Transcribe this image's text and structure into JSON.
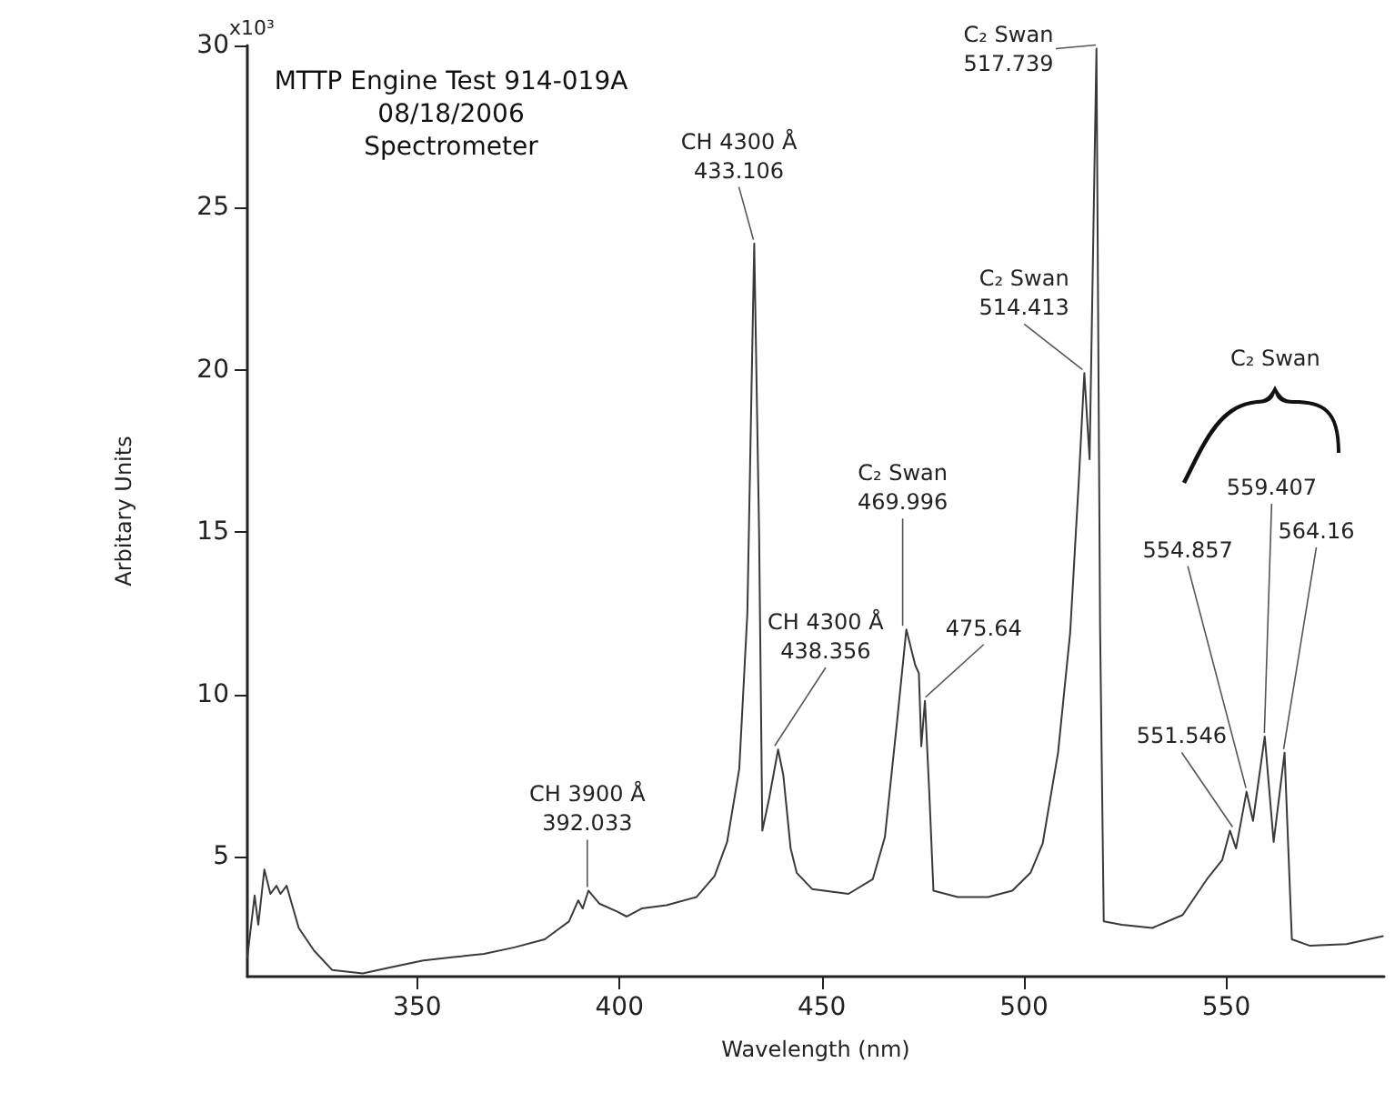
{
  "chart_data": {
    "type": "line",
    "title": "MTTP Engine Test 914-019A",
    "subtitle": "08/18/2006\nSpectrometer",
    "xlabel": "Wavelength (nm)",
    "ylabel": "Arbitary Units",
    "x": [
      308,
      309.8,
      310.7,
      312.2,
      313.7,
      315.2,
      316.2,
      317.7,
      320.7,
      324.5,
      329,
      336.5,
      344,
      351.5,
      359,
      366.5,
      374,
      381.5,
      387.5,
      389.8,
      390.9,
      392.3,
      395,
      399.5,
      401.8,
      405.5,
      411.6,
      419,
      423.5,
      426.6,
      429.6,
      431.6,
      433.3,
      434.5,
      435.3,
      437,
      439.2,
      440.5,
      442.3,
      443.8,
      447.6,
      456.6,
      462.6,
      465.6,
      468.6,
      470.9,
      473.1,
      474,
      474.6,
      475.5,
      476.6,
      477.6,
      483.6,
      491.1,
      497.1,
      501.6,
      504.6,
      508.4,
      511.4,
      513.5,
      514.9,
      516.2,
      517.9,
      518.8,
      519.7,
      524.2,
      531.7,
      539.2,
      545.2,
      549,
      550.9,
      552.4,
      555,
      556.6,
      559.5,
      561.7,
      564.4,
      566.2,
      570.7,
      579.7,
      588.7
    ],
    "values": [
      1.9,
      3.8,
      2.9,
      4.6,
      3.85,
      4.1,
      3.85,
      4.1,
      2.8,
      2.1,
      1.5,
      1.4,
      1.6,
      1.8,
      1.9,
      2.0,
      2.2,
      2.45,
      3.0,
      3.65,
      3.4,
      3.95,
      3.55,
      3.3,
      3.15,
      3.4,
      3.5,
      3.75,
      4.4,
      5.45,
      7.7,
      12.5,
      23.9,
      15.0,
      5.8,
      6.8,
      8.3,
      7.5,
      5.25,
      4.5,
      4.0,
      3.85,
      4.3,
      5.6,
      9.15,
      12.0,
      10.9,
      10.65,
      8.4,
      9.8,
      6.9,
      3.95,
      3.75,
      3.75,
      3.95,
      4.5,
      5.4,
      8.2,
      11.9,
      16.5,
      19.9,
      17.25,
      29.9,
      12.0,
      3.0,
      2.9,
      2.8,
      3.2,
      4.3,
      4.9,
      5.8,
      5.25,
      7.0,
      6.1,
      8.7,
      5.45,
      8.2,
      2.45,
      2.25,
      2.3,
      2.55
    ],
    "color": "#3a3a3a",
    "xlim": [
      308,
      589
    ],
    "xticks": [
      350,
      400,
      450,
      500,
      550
    ],
    "ylim": [
      1.3,
      30
    ],
    "yticks": [
      5,
      10,
      15,
      20,
      25,
      30
    ],
    "grid": false,
    "marker": "none",
    "line_style": "solid",
    "annotations": [
      {
        "text": "CH 3900 Å\n392.033",
        "x": 392.033,
        "y": 3.95
      },
      {
        "text": "CH 4300 Å\n433.106",
        "x": 433.106,
        "y": 23.9
      },
      {
        "text": "CH 4300 Å\n438.356",
        "x": 438.356,
        "y": 8.3
      },
      {
        "text": "C₂ Swan\n469.996",
        "x": 469.996,
        "y": 12.0
      },
      {
        "text": "475.64",
        "x": 475.64,
        "y": 9.8
      },
      {
        "text": "C₂ Swan\n514.413",
        "x": 514.413,
        "y": 19.9
      },
      {
        "text": "C₂ Swan\n517.739",
        "x": 517.739,
        "y": 29.9
      },
      {
        "text": "551.546",
        "x": 551.546,
        "y": 5.8
      },
      {
        "text": "554.857",
        "x": 554.857,
        "y": 7.0
      },
      {
        "text": "559.407",
        "x": 559.407,
        "y": 8.7
      },
      {
        "text": "564.16",
        "x": 564.16,
        "y": 8.2
      },
      "C₂ Swan",
      "x10³"
    ]
  }
}
